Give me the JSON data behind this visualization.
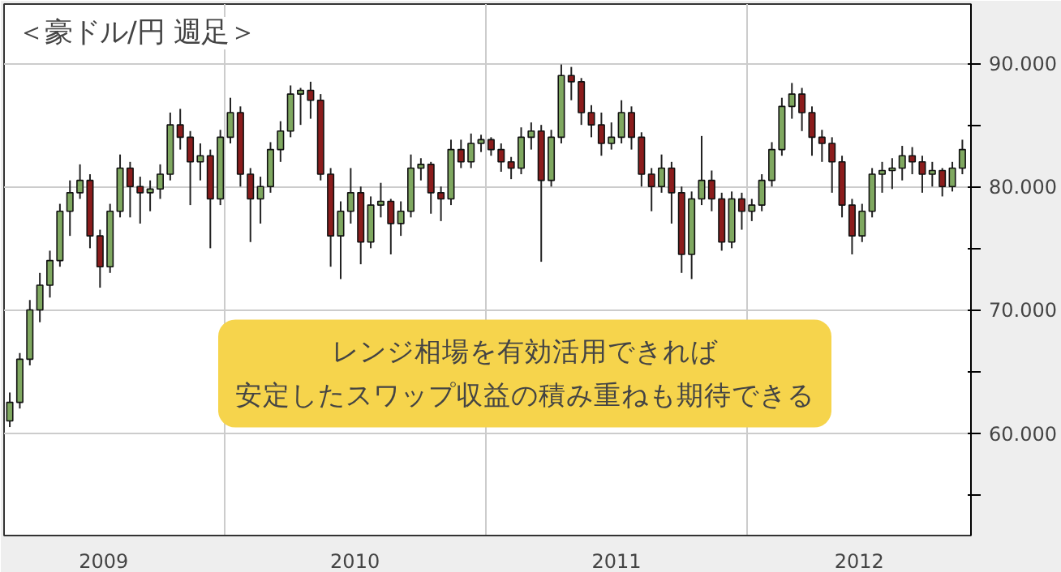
{
  "chart_data": {
    "type": "candlestick",
    "title": "＜豪ドル/円 週足＞",
    "annotations": [
      "レンジ相場を有効活用できれば",
      "安定したスワップ収益の積み重ねも期待できる"
    ],
    "x": [
      "2009-03-07",
      "2009-03-21",
      "2009-04-04",
      "2009-04-18",
      "2009-05-02",
      "2009-05-16",
      "2009-05-30",
      "2009-06-13",
      "2009-06-27",
      "2009-07-11",
      "2009-07-25",
      "2009-08-08",
      "2009-08-22",
      "2009-09-05",
      "2009-09-19",
      "2009-10-03",
      "2009-10-17",
      "2009-10-31",
      "2009-11-14",
      "2009-11-28",
      "2009-12-12",
      "2009-12-26",
      "2010-01-09",
      "2010-01-23",
      "2010-02-06",
      "2010-02-20",
      "2010-03-06",
      "2010-03-20",
      "2010-04-03",
      "2010-04-17",
      "2010-05-01",
      "2010-05-15",
      "2010-05-29",
      "2010-06-12",
      "2010-06-26",
      "2010-07-10",
      "2010-07-24",
      "2010-08-07",
      "2010-08-21",
      "2010-09-04",
      "2010-09-18",
      "2010-10-02",
      "2010-10-16",
      "2010-10-30",
      "2010-11-13",
      "2010-11-27",
      "2010-12-11",
      "2010-12-25",
      "2011-01-08",
      "2011-01-22",
      "2011-02-05",
      "2011-02-19",
      "2011-03-05",
      "2011-03-19",
      "2011-04-02",
      "2011-04-16",
      "2011-04-30",
      "2011-05-14",
      "2011-05-28",
      "2011-06-11",
      "2011-06-25",
      "2011-07-09",
      "2011-07-23",
      "2011-08-06",
      "2011-08-20",
      "2011-09-03",
      "2011-09-17",
      "2011-10-01",
      "2011-10-15",
      "2011-10-29",
      "2011-11-12",
      "2011-11-26",
      "2011-12-10",
      "2011-12-24",
      "2012-01-07",
      "2012-01-21",
      "2012-02-04",
      "2012-02-18",
      "2012-03-03",
      "2012-03-17",
      "2012-03-31",
      "2012-04-14",
      "2012-04-28",
      "2012-05-12",
      "2012-05-26",
      "2012-06-09",
      "2012-06-23",
      "2012-07-07",
      "2012-07-21",
      "2012-08-04",
      "2012-08-18",
      "2012-09-01",
      "2012-09-15",
      "2012-09-29",
      "2012-10-13",
      "2012-10-27"
    ],
    "ohlc": [
      [
        61,
        63.3,
        60.5,
        62.5
      ],
      [
        62.5,
        66.5,
        62,
        66
      ],
      [
        66,
        70.8,
        65.5,
        70
      ],
      [
        70,
        73,
        69,
        72
      ],
      [
        72,
        74.8,
        71,
        74
      ],
      [
        74,
        78.6,
        73.5,
        78
      ],
      [
        78,
        80.5,
        76,
        79.5
      ],
      [
        79.5,
        81.8,
        79,
        80.5
      ],
      [
        80.5,
        81,
        75,
        76
      ],
      [
        76,
        76.5,
        71.8,
        73.5
      ],
      [
        73.5,
        78.6,
        73,
        78
      ],
      [
        78,
        82.6,
        77.5,
        81.5
      ],
      [
        81.5,
        82,
        77.5,
        80
      ],
      [
        80,
        80.8,
        77,
        79.5
      ],
      [
        79.5,
        80.5,
        78,
        79.8
      ],
      [
        79.8,
        81.8,
        79,
        81
      ],
      [
        81,
        86,
        80.5,
        85
      ],
      [
        85,
        86.3,
        83,
        84
      ],
      [
        84,
        84.5,
        78.5,
        82
      ],
      [
        82,
        83.5,
        80.5,
        82.5
      ],
      [
        82.5,
        83,
        75,
        79
      ],
      [
        79,
        84.6,
        78.5,
        84
      ],
      [
        84,
        87.2,
        83.5,
        86
      ],
      [
        86,
        86.5,
        80,
        81
      ],
      [
        81,
        81.5,
        75.5,
        79
      ],
      [
        79,
        80.8,
        77,
        80
      ],
      [
        80,
        83.6,
        79.5,
        83
      ],
      [
        83,
        85.3,
        82,
        84.5
      ],
      [
        84.5,
        88.2,
        84,
        87.5
      ],
      [
        87.5,
        88,
        85,
        87.8
      ],
      [
        87.8,
        88.5,
        85.5,
        87
      ],
      [
        87,
        87.5,
        80.5,
        81
      ],
      [
        81,
        81.5,
        73.5,
        76
      ],
      [
        76,
        78.8,
        72.5,
        78
      ],
      [
        78,
        81.5,
        77,
        79.5
      ],
      [
        79.5,
        80,
        73.7,
        75.5
      ],
      [
        75.5,
        79.2,
        75,
        78.5
      ],
      [
        78.5,
        80.3,
        77.5,
        78.8
      ],
      [
        78.8,
        79,
        74.5,
        77
      ],
      [
        77,
        78.8,
        76,
        78
      ],
      [
        78,
        82.6,
        77.5,
        81.5
      ],
      [
        81.5,
        82.3,
        80.5,
        81.8
      ],
      [
        81.8,
        82,
        77.8,
        79.5
      ],
      [
        79.5,
        80,
        77.2,
        79
      ],
      [
        79,
        83.8,
        78.5,
        83
      ],
      [
        83,
        83.8,
        81.5,
        82
      ],
      [
        82,
        84.3,
        81.5,
        83.5
      ],
      [
        83.5,
        84.2,
        82.8,
        83.8
      ],
      [
        83.8,
        84,
        82.5,
        83
      ],
      [
        83,
        83.5,
        81.2,
        82
      ],
      [
        82,
        82.4,
        80.6,
        81.5
      ],
      [
        81.5,
        84.8,
        81,
        84
      ],
      [
        84,
        85.2,
        83,
        84.5
      ],
      [
        84.5,
        85,
        73.9,
        80.5
      ],
      [
        80.5,
        84.6,
        80,
        84
      ],
      [
        84,
        89.9,
        83.5,
        89
      ],
      [
        89,
        89.7,
        87,
        88.5
      ],
      [
        88.5,
        88.8,
        85,
        86
      ],
      [
        86,
        86.6,
        84,
        85
      ],
      [
        85,
        86,
        82.5,
        83.5
      ],
      [
        83.5,
        85.2,
        83,
        84
      ],
      [
        84,
        87,
        83.5,
        86
      ],
      [
        86,
        86.5,
        83,
        84
      ],
      [
        84,
        84.4,
        80,
        81
      ],
      [
        81,
        81.5,
        78,
        80
      ],
      [
        80,
        82.6,
        79.5,
        81.5
      ],
      [
        81.5,
        82,
        77,
        79.5
      ],
      [
        79.5,
        80,
        73,
        74.5
      ],
      [
        74.5,
        79.6,
        72.5,
        79
      ],
      [
        79,
        84.1,
        78.5,
        80.5
      ],
      [
        80.5,
        81.3,
        78,
        79
      ],
      [
        79,
        79.5,
        74.8,
        75.5
      ],
      [
        75.5,
        79.6,
        75,
        79
      ],
      [
        79,
        79.5,
        76.5,
        78
      ],
      [
        78,
        79,
        77.2,
        78.5
      ],
      [
        78.5,
        81,
        78,
        80.5
      ],
      [
        80.5,
        83.6,
        80,
        83
      ],
      [
        83,
        87.2,
        82.5,
        86.5
      ],
      [
        86.5,
        88.4,
        85.5,
        87.5
      ],
      [
        87.5,
        88,
        84.5,
        86
      ],
      [
        86,
        86.5,
        82.5,
        84
      ],
      [
        84,
        84.6,
        82,
        83.5
      ],
      [
        83.5,
        84,
        79.5,
        82
      ],
      [
        82,
        82.5,
        77.5,
        78.5
      ],
      [
        78.5,
        79,
        74.5,
        76
      ],
      [
        76,
        78.6,
        75.5,
        78
      ],
      [
        78,
        81.5,
        77.5,
        81
      ],
      [
        81,
        82,
        79.5,
        81.3
      ],
      [
        81.3,
        82.3,
        79.8,
        81.5
      ],
      [
        81.5,
        83.3,
        80.5,
        82.5
      ],
      [
        82.5,
        83.2,
        81,
        82
      ],
      [
        82,
        82.5,
        79.5,
        81
      ],
      [
        81,
        82,
        80,
        81.3
      ],
      [
        81.3,
        81.5,
        79.2,
        80
      ],
      [
        80,
        82,
        79.6,
        81.5
      ],
      [
        81.5,
        83.8,
        81,
        83
      ]
    ],
    "colors": [
      "#7fa860",
      "#7fa860",
      "#7fa860",
      "#7fa860",
      "#7fa860",
      "#7fa860",
      "#7fa860",
      "#7fa860",
      "#8b1c1c",
      "#8b1c1c",
      "#7fa860",
      "#7fa860",
      "#8b1c1c",
      "#8b1c1c",
      "#7fa860",
      "#7fa860",
      "#7fa860",
      "#8b1c1c",
      "#8b1c1c",
      "#7fa860",
      "#8b1c1c",
      "#7fa860",
      "#7fa860",
      "#8b1c1c",
      "#8b1c1c",
      "#7fa860",
      "#7fa860",
      "#7fa860",
      "#7fa860",
      "#7fa860",
      "#8b1c1c",
      "#8b1c1c",
      "#8b1c1c",
      "#7fa860",
      "#7fa860",
      "#8b1c1c",
      "#7fa860",
      "#7fa860",
      "#8b1c1c",
      "#7fa860",
      "#7fa860",
      "#7fa860",
      "#8b1c1c",
      "#8b1c1c",
      "#7fa860",
      "#8b1c1c",
      "#7fa860",
      "#7fa860",
      "#8b1c1c",
      "#8b1c1c",
      "#8b1c1c",
      "#7fa860",
      "#7fa860",
      "#8b1c1c",
      "#7fa860",
      "#7fa860",
      "#8b1c1c",
      "#8b1c1c",
      "#8b1c1c",
      "#8b1c1c",
      "#7fa860",
      "#7fa860",
      "#8b1c1c",
      "#8b1c1c",
      "#8b1c1c",
      "#7fa860",
      "#8b1c1c",
      "#8b1c1c",
      "#7fa860",
      "#7fa860",
      "#8b1c1c",
      "#8b1c1c",
      "#7fa860",
      "#8b1c1c",
      "#7fa860",
      "#7fa860",
      "#7fa860",
      "#7fa860",
      "#7fa860",
      "#8b1c1c",
      "#8b1c1c",
      "#8b1c1c",
      "#8b1c1c",
      "#8b1c1c",
      "#8b1c1c",
      "#7fa860",
      "#7fa860",
      "#7fa860",
      "#7fa860",
      "#7fa860",
      "#8b1c1c",
      "#8b1c1c",
      "#7fa860",
      "#8b1c1c",
      "#7fa860",
      "#7fa860"
    ],
    "xlim": [
      "2009-02-27",
      "2012-11-08"
    ],
    "xticks": [
      {
        "value": "2009-07-16",
        "label": "2009"
      },
      {
        "value": "2010-01-01",
        "label": null
      },
      {
        "value": "2010-07-02",
        "label": "2010"
      },
      {
        "value": "2011-01-01",
        "label": null
      },
      {
        "value": "2011-07-02",
        "label": "2011"
      },
      {
        "value": "2012-01-01",
        "label": null
      },
      {
        "value": "2012-06-05",
        "label": "2012"
      }
    ],
    "ylim": [
      51.7,
      94.8
    ],
    "yticks": [
      {
        "value": 55,
        "label": null
      },
      {
        "value": 60,
        "label": "60.000"
      },
      {
        "value": 65,
        "label": null
      },
      {
        "value": 70,
        "label": "70.000"
      },
      {
        "value": 75,
        "label": null
      },
      {
        "value": 80,
        "label": "80.000"
      },
      {
        "value": 85,
        "label": null
      },
      {
        "value": 90,
        "label": "90.000"
      }
    ],
    "grid": true
  }
}
